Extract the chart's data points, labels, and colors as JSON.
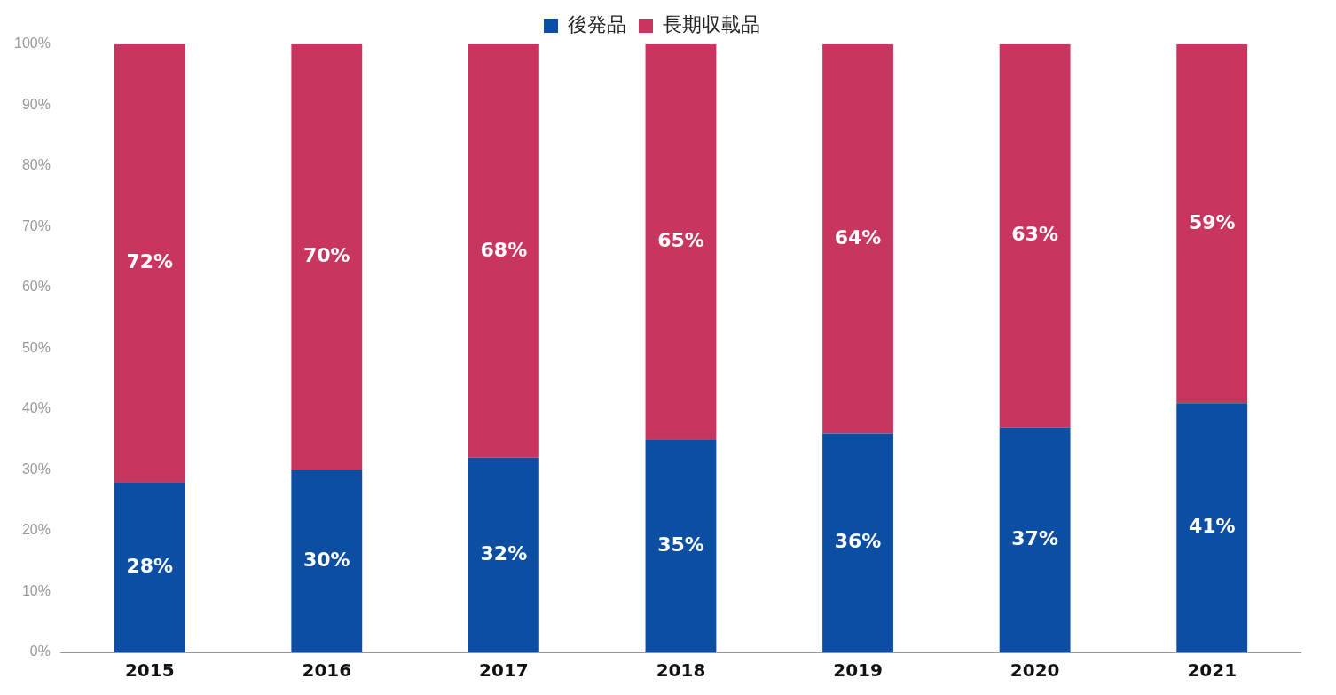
{
  "chart_data": {
    "type": "bar",
    "stacked": true,
    "legend": "top",
    "grid": false,
    "categories": [
      "2015",
      "2016",
      "2017",
      "2018",
      "2019",
      "2020",
      "2021"
    ],
    "series": [
      {
        "name": "後発品",
        "color": "#0b4ea2",
        "values": [
          28,
          30,
          32,
          35,
          36,
          37,
          41
        ],
        "value_labels": [
          "28%",
          "30%",
          "32%",
          "35%",
          "36%",
          "37%",
          "41%"
        ]
      },
      {
        "name": "長期収載品",
        "color": "#c8365f",
        "values": [
          72,
          70,
          68,
          65,
          64,
          63,
          59
        ],
        "value_labels": [
          "72%",
          "70%",
          "68%",
          "65%",
          "64%",
          "63%",
          "59%"
        ]
      }
    ],
    "ylim": [
      0,
      100
    ],
    "yticks": [
      {
        "value": 0,
        "label": "0%"
      },
      {
        "value": 10,
        "label": "10%"
      },
      {
        "value": 20,
        "label": "20%"
      },
      {
        "value": 30,
        "label": "30%"
      },
      {
        "value": 40,
        "label": "40%"
      },
      {
        "value": 50,
        "label": "50%"
      },
      {
        "value": 60,
        "label": "60%"
      },
      {
        "value": 70,
        "label": "70%"
      },
      {
        "value": 80,
        "label": "80%"
      },
      {
        "value": 90,
        "label": "90%"
      },
      {
        "value": 100,
        "label": "100%"
      }
    ]
  }
}
